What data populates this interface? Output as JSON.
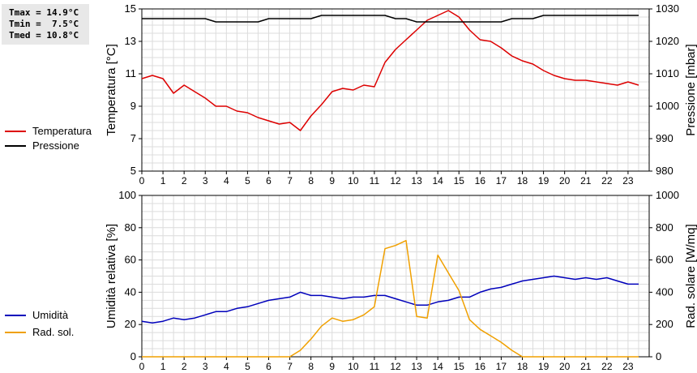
{
  "stats": {
    "tmax": "Tmax = 14.9°C",
    "tmin": "Tmin =  7.5°C",
    "tmed": "Tmed = 10.8°C"
  },
  "legends": {
    "top": [
      {
        "label": "Temperatura",
        "color": "#dd0000"
      },
      {
        "label": "Pressione",
        "color": "#000000"
      }
    ],
    "bottom": [
      {
        "label": "Umidità",
        "color": "#0000bb"
      },
      {
        "label": "Rad. sol.",
        "color": "#f0a000"
      }
    ]
  },
  "chart_data": [
    {
      "type": "line",
      "xlabel": "",
      "x": [
        0,
        0.5,
        1,
        1.5,
        2,
        2.5,
        3,
        3.5,
        4,
        4.5,
        5,
        5.5,
        6,
        6.5,
        7,
        7.5,
        8,
        8.5,
        9,
        9.5,
        10,
        10.5,
        11,
        11.5,
        12,
        12.5,
        13,
        13.5,
        14,
        14.5,
        15,
        15.5,
        16,
        16.5,
        17,
        17.5,
        18,
        18.5,
        19,
        19.5,
        20,
        20.5,
        21,
        21.5,
        22,
        22.5,
        23,
        23.5
      ],
      "xticks": [
        0,
        1,
        2,
        3,
        4,
        5,
        6,
        7,
        8,
        9,
        10,
        11,
        12,
        13,
        14,
        15,
        16,
        17,
        18,
        19,
        20,
        21,
        22,
        23
      ],
      "xlim": [
        0,
        24
      ],
      "ylabel": "Temperatura [°C]",
      "ylim": [
        5,
        15
      ],
      "yticks": [
        5,
        7,
        9,
        11,
        13,
        15
      ],
      "y2label": "Pressione [mbar]",
      "y2lim": [
        980,
        1030
      ],
      "y2ticks": [
        980,
        990,
        1000,
        1010,
        1020,
        1030
      ],
      "grid": true,
      "series": [
        {
          "name": "Temperatura",
          "axis": "left",
          "color": "#dd0000",
          "values": [
            10.7,
            10.9,
            10.7,
            9.8,
            10.3,
            9.9,
            9.5,
            9.0,
            9.0,
            8.7,
            8.6,
            8.3,
            8.1,
            7.9,
            8.0,
            7.5,
            8.4,
            9.1,
            9.9,
            10.1,
            10.0,
            10.3,
            10.2,
            11.7,
            12.5,
            13.1,
            13.7,
            14.3,
            14.6,
            14.9,
            14.5,
            13.7,
            13.1,
            13.0,
            12.6,
            12.1,
            11.8,
            11.6,
            11.2,
            10.9,
            10.7,
            10.6,
            10.6,
            10.5,
            10.4,
            10.3,
            10.5,
            10.3
          ]
        },
        {
          "name": "Pressione",
          "axis": "right",
          "color": "#000000",
          "values": [
            1027,
            1027,
            1027,
            1027,
            1027,
            1027,
            1027,
            1026,
            1026,
            1026,
            1026,
            1026,
            1027,
            1027,
            1027,
            1027,
            1027,
            1028,
            1028,
            1028,
            1028,
            1028,
            1028,
            1028,
            1027,
            1027,
            1026,
            1026,
            1026,
            1026,
            1026,
            1026,
            1026,
            1026,
            1026,
            1027,
            1027,
            1027,
            1028,
            1028,
            1028,
            1028,
            1028,
            1028,
            1028,
            1028,
            1028,
            1028
          ]
        }
      ]
    },
    {
      "type": "line",
      "xlabel": "",
      "x": [
        0,
        0.5,
        1,
        1.5,
        2,
        2.5,
        3,
        3.5,
        4,
        4.5,
        5,
        5.5,
        6,
        6.5,
        7,
        7.5,
        8,
        8.5,
        9,
        9.5,
        10,
        10.5,
        11,
        11.5,
        12,
        12.5,
        13,
        13.5,
        14,
        14.5,
        15,
        15.5,
        16,
        16.5,
        17,
        17.5,
        18,
        18.5,
        19,
        19.5,
        20,
        20.5,
        21,
        21.5,
        22,
        22.5,
        23,
        23.5
      ],
      "xticks": [
        0,
        1,
        2,
        3,
        4,
        5,
        6,
        7,
        8,
        9,
        10,
        11,
        12,
        13,
        14,
        15,
        16,
        17,
        18,
        19,
        20,
        21,
        22,
        23
      ],
      "xlim": [
        0,
        24
      ],
      "ylabel": "Umidità relativa [%]",
      "ylim": [
        0,
        100
      ],
      "yticks": [
        0,
        20,
        40,
        60,
        80,
        100
      ],
      "y2label": "Rad. solare [W/mq]",
      "y2lim": [
        0,
        1000
      ],
      "y2ticks": [
        0,
        200,
        400,
        600,
        800,
        1000
      ],
      "grid": true,
      "series": [
        {
          "name": "Umidità",
          "axis": "left",
          "color": "#0000bb",
          "values": [
            22,
            21,
            22,
            24,
            23,
            24,
            26,
            28,
            28,
            30,
            31,
            33,
            35,
            36,
            37,
            40,
            38,
            38,
            37,
            36,
            37,
            37,
            38,
            38,
            36,
            34,
            32,
            32,
            34,
            35,
            37,
            37,
            40,
            42,
            43,
            45,
            47,
            48,
            49,
            50,
            49,
            48,
            49,
            48,
            49,
            47,
            45,
            45
          ]
        },
        {
          "name": "Rad. sol.",
          "axis": "right",
          "color": "#f0a000",
          "values": [
            0,
            0,
            0,
            0,
            0,
            0,
            0,
            0,
            0,
            0,
            0,
            0,
            0,
            0,
            0,
            40,
            110,
            190,
            240,
            220,
            230,
            260,
            310,
            670,
            690,
            720,
            250,
            240,
            630,
            520,
            410,
            230,
            170,
            130,
            90,
            40,
            0,
            0,
            0,
            0,
            0,
            0,
            0,
            0,
            0,
            0,
            0,
            0
          ]
        }
      ]
    }
  ]
}
